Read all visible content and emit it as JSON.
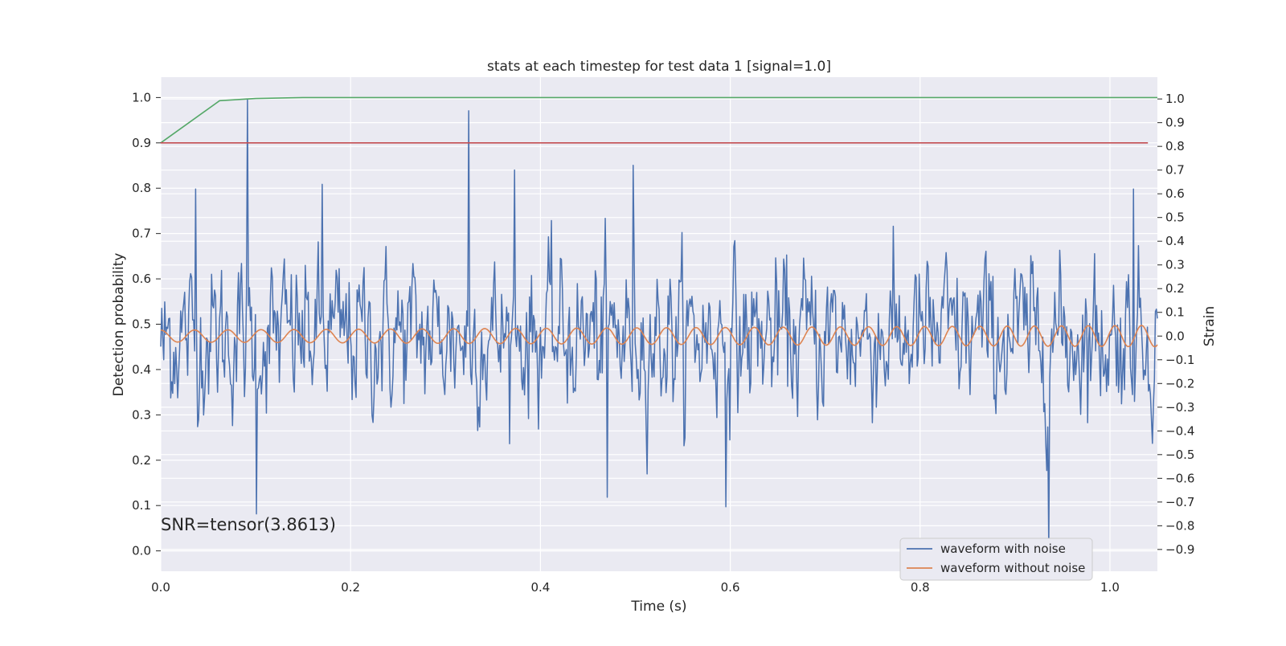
{
  "chart_data": {
    "type": "line",
    "title": "stats at each timestep for test data 1 [signal=1.0]",
    "xlabel": "Time (s)",
    "ylabel_left": "Detection probability",
    "ylabel_right": "Strain",
    "xlim": [
      0.0,
      1.05
    ],
    "ylim_left": [
      -0.045,
      1.045
    ],
    "ylim_right": [
      -0.992,
      1.092
    ],
    "x_ticks": [
      "0.0",
      "0.2",
      "0.4",
      "0.6",
      "0.8",
      "1.0"
    ],
    "left_ticks": [
      "0.0",
      "0.1",
      "0.2",
      "0.3",
      "0.4",
      "0.5",
      "0.6",
      "0.7",
      "0.8",
      "0.9",
      "1.0"
    ],
    "right_ticks": [
      "−0.9",
      "−0.8",
      "−0.7",
      "−0.6",
      "−0.5",
      "−0.4",
      "−0.3",
      "−0.2",
      "−0.1",
      "0.0",
      "0.1",
      "0.2",
      "0.3",
      "0.4",
      "0.5",
      "0.6",
      "0.7",
      "0.8",
      "0.9",
      "1.0"
    ],
    "grid": true,
    "legend_position": "lower-right",
    "annotation": "SNR=tensor(3.8613)",
    "series": [
      {
        "name": "waveform with noise",
        "axis": "right",
        "color": "#4c72b0",
        "noise_sigma": 0.26,
        "x_range": [
          0.0,
          1.05
        ],
        "peaks": [
          {
            "x": 0.003,
            "y": -0.1
          },
          {
            "x": 0.037,
            "y": 0.62
          },
          {
            "x": 0.091,
            "y": 1.0
          },
          {
            "x": 0.101,
            "y": -0.75
          },
          {
            "x": 0.17,
            "y": 0.64
          },
          {
            "x": 0.324,
            "y": 0.95
          },
          {
            "x": 0.373,
            "y": 0.7
          },
          {
            "x": 0.47,
            "y": -0.68
          },
          {
            "x": 0.498,
            "y": 0.72
          },
          {
            "x": 0.595,
            "y": -0.72
          },
          {
            "x": 0.936,
            "y": -0.9
          },
          {
            "x": 1.025,
            "y": 0.62
          }
        ]
      },
      {
        "name": "waveform without noise",
        "axis": "right",
        "color": "#dd8452",
        "amplitude_start": 0.025,
        "amplitude_end": 0.045,
        "frequency_start_hz": 28,
        "frequency_end_hz": 36,
        "x_range": [
          0.0,
          1.05
        ]
      },
      {
        "name": "",
        "axis": "left",
        "color": "#55a868",
        "points": [
          [
            0.0,
            0.9
          ],
          [
            0.062,
            0.993
          ],
          [
            0.1,
            0.998
          ],
          [
            0.15,
            1.0
          ],
          [
            1.05,
            1.0
          ]
        ]
      },
      {
        "name": "",
        "axis": "left",
        "color": "#c44e52",
        "points": [
          [
            0.0,
            0.9
          ],
          [
            1.04,
            0.9
          ]
        ]
      }
    ]
  }
}
